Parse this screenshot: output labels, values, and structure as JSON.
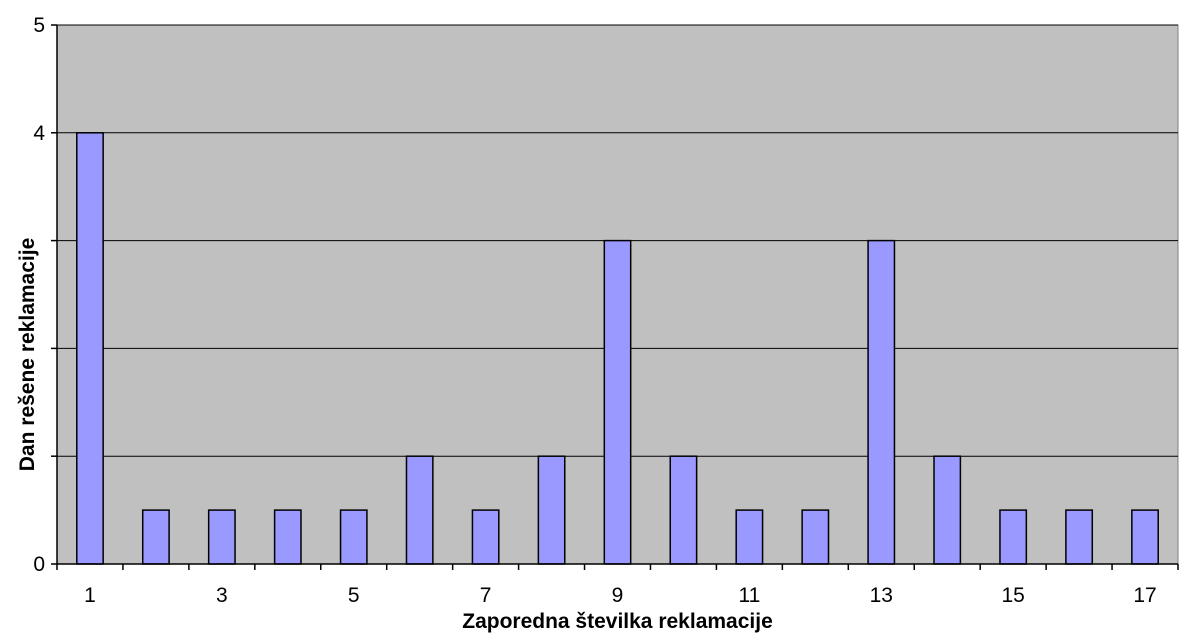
{
  "chart_data": {
    "type": "bar",
    "title": "",
    "xlabel": "Zaporedna številka reklamacije",
    "ylabel": "Dan rešene reklamacije",
    "categories": [
      "1",
      "2",
      "3",
      "4",
      "5",
      "6",
      "7",
      "8",
      "9",
      "10",
      "11",
      "12",
      "13",
      "14",
      "15",
      "16",
      "17"
    ],
    "x_tick_labels": [
      "1",
      "",
      "3",
      "",
      "5",
      "",
      "7",
      "",
      "9",
      "",
      "11",
      "",
      "13",
      "",
      "15",
      "",
      "17"
    ],
    "values": [
      4,
      0.5,
      0.5,
      0.5,
      0.5,
      1,
      0.5,
      1,
      3,
      1,
      0.5,
      0.5,
      3,
      1,
      0.5,
      0.5,
      0.5
    ],
    "ylim": [
      0,
      5
    ],
    "y_gridlines": [
      0,
      1,
      2,
      3,
      4,
      5
    ],
    "y_tick_labels": [
      "0",
      "",
      "",
      "",
      "4",
      "5"
    ],
    "grid": true,
    "legend": "none",
    "colors": {
      "plot_background": "#c0c0c0",
      "bar_fill": "#9999ff",
      "bar_stroke": "#000000",
      "gridline": "#000000"
    }
  }
}
